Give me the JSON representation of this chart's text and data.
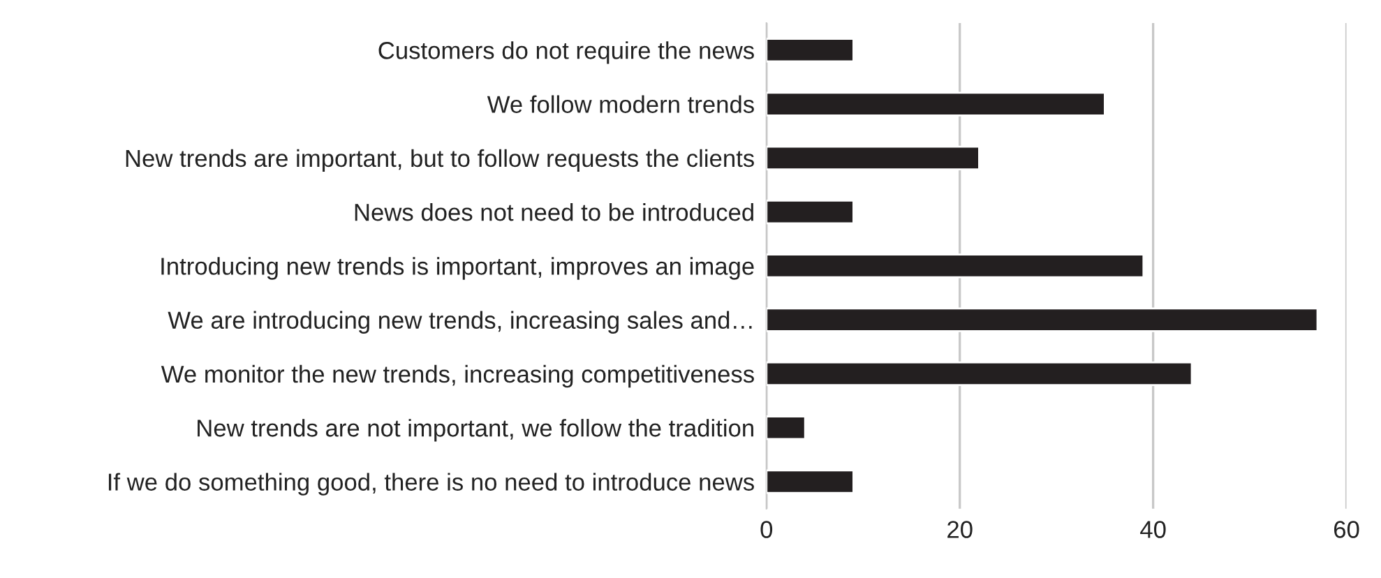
{
  "chart_data": {
    "type": "bar",
    "orientation": "horizontal",
    "categories": [
      "Customers do not require the news",
      "We follow modern trends",
      "New trends are important, but to follow requests the clients",
      "News does not need to be introduced",
      "Introducing new trends is important, improves an image",
      "We are introducing new trends, increasing sales and…",
      "We monitor the new trends, increasing competitiveness",
      "New trends are not important, we follow the tradition",
      "If we do something good, there is no need to introduce news"
    ],
    "values": [
      9,
      35,
      22,
      9,
      39,
      57,
      44,
      4,
      9
    ],
    "color": "#231f20",
    "xlim": [
      0,
      60
    ],
    "xticks": [
      0,
      20,
      40,
      60
    ],
    "grid": "x"
  }
}
